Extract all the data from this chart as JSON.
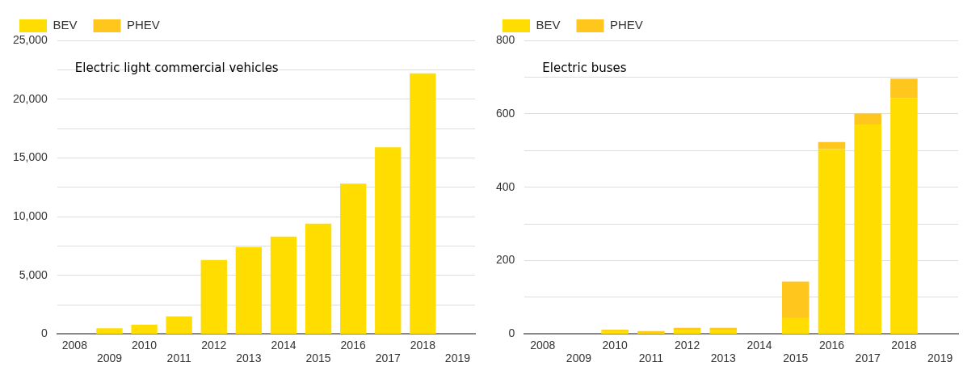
{
  "chart_data": [
    {
      "type": "bar",
      "title": "Electric light commercial vehicles",
      "stacked": true,
      "legend": "top left",
      "grid": "y",
      "categories": [
        "2008",
        "2009",
        "2010",
        "2011",
        "2012",
        "2013",
        "2014",
        "2015",
        "2016",
        "2017",
        "2018",
        "2019"
      ],
      "series": [
        {
          "name": "BEV",
          "color": "#ffdd00",
          "values": [
            0,
            500,
            800,
            1500,
            6300,
            7400,
            8300,
            9400,
            12800,
            15900,
            22200,
            0
          ]
        },
        {
          "name": "PHEV",
          "color": "#ffc61e",
          "values": [
            0,
            0,
            0,
            0,
            0,
            0,
            0,
            0,
            0,
            0,
            0,
            0
          ]
        }
      ],
      "ylim": [
        0,
        25000
      ],
      "yticks": [
        0,
        {
          "value": 2500,
          "label": null
        },
        {
          "value": 5000,
          "label": "5,000"
        },
        {
          "value": 7500,
          "label": null
        },
        {
          "value": 10000,
          "label": "10,000"
        },
        {
          "value": 12500,
          "label": null
        },
        {
          "value": 15000,
          "label": "15,000"
        },
        {
          "value": 17500,
          "label": null
        },
        {
          "value": 20000,
          "label": "20,000"
        },
        {
          "value": 22500,
          "label": null
        },
        {
          "value": 25000,
          "label": "25,000"
        }
      ]
    },
    {
      "type": "bar",
      "title": "Electric buses",
      "stacked": true,
      "legend": "top left",
      "grid": "y",
      "categories": [
        "2008",
        "2009",
        "2010",
        "2011",
        "2012",
        "2013",
        "2014",
        "2015",
        "2016",
        "2017",
        "2018",
        "2019"
      ],
      "series": [
        {
          "name": "BEV",
          "color": "#ffdd00",
          "values": [
            0,
            0,
            8,
            3,
            12,
            12,
            0,
            45,
            504,
            571,
            643,
            0
          ]
        },
        {
          "name": "PHEV",
          "color": "#ffc61e",
          "values": [
            0,
            0,
            4,
            5,
            5,
            5,
            0,
            98,
            19,
            30,
            53,
            0
          ]
        }
      ],
      "ylim": [
        0,
        800
      ],
      "yticks": [
        0,
        {
          "value": 100,
          "label": null
        },
        200,
        {
          "value": 300,
          "label": null
        },
        400,
        {
          "value": 500,
          "label": null
        },
        600,
        {
          "value": 700,
          "label": null
        },
        800
      ]
    }
  ]
}
